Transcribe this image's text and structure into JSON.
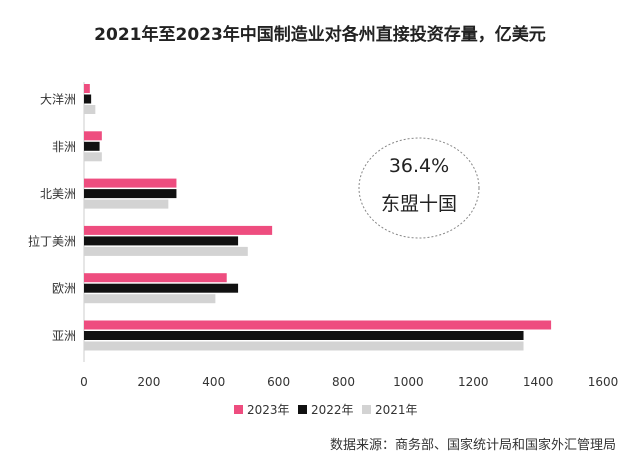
{
  "chart_data": {
    "type": "bar",
    "orientation": "horizontal",
    "title": "2021年至2023年中国制造业对各州直接投资存量，亿美元",
    "categories": [
      "大洋洲",
      "非洲",
      "北美洲",
      "拉丁美洲",
      "欧洲",
      "亚洲"
    ],
    "series": [
      {
        "name": "2023年",
        "color": "#ee4d7f",
        "values": [
          18,
          55,
          285,
          580,
          440,
          1440
        ]
      },
      {
        "name": "2022年",
        "color": "#111111",
        "values": [
          22,
          48,
          285,
          475,
          475,
          1355
        ]
      },
      {
        "name": "2021年",
        "color": "#d3d3d3",
        "values": [
          35,
          55,
          260,
          505,
          405,
          1355
        ]
      }
    ],
    "xlim": [
      0,
      1600
    ],
    "xticks": [
      "0",
      "200",
      "400",
      "600",
      "800",
      "1000",
      "1200",
      "1400",
      "1600"
    ],
    "grid": false,
    "legend_position": "bottom",
    "annotation": {
      "line1": "36.4%",
      "line2": "东盟十国"
    },
    "source": "数据来源：商务部、国家统计局和国家外汇管理局"
  }
}
